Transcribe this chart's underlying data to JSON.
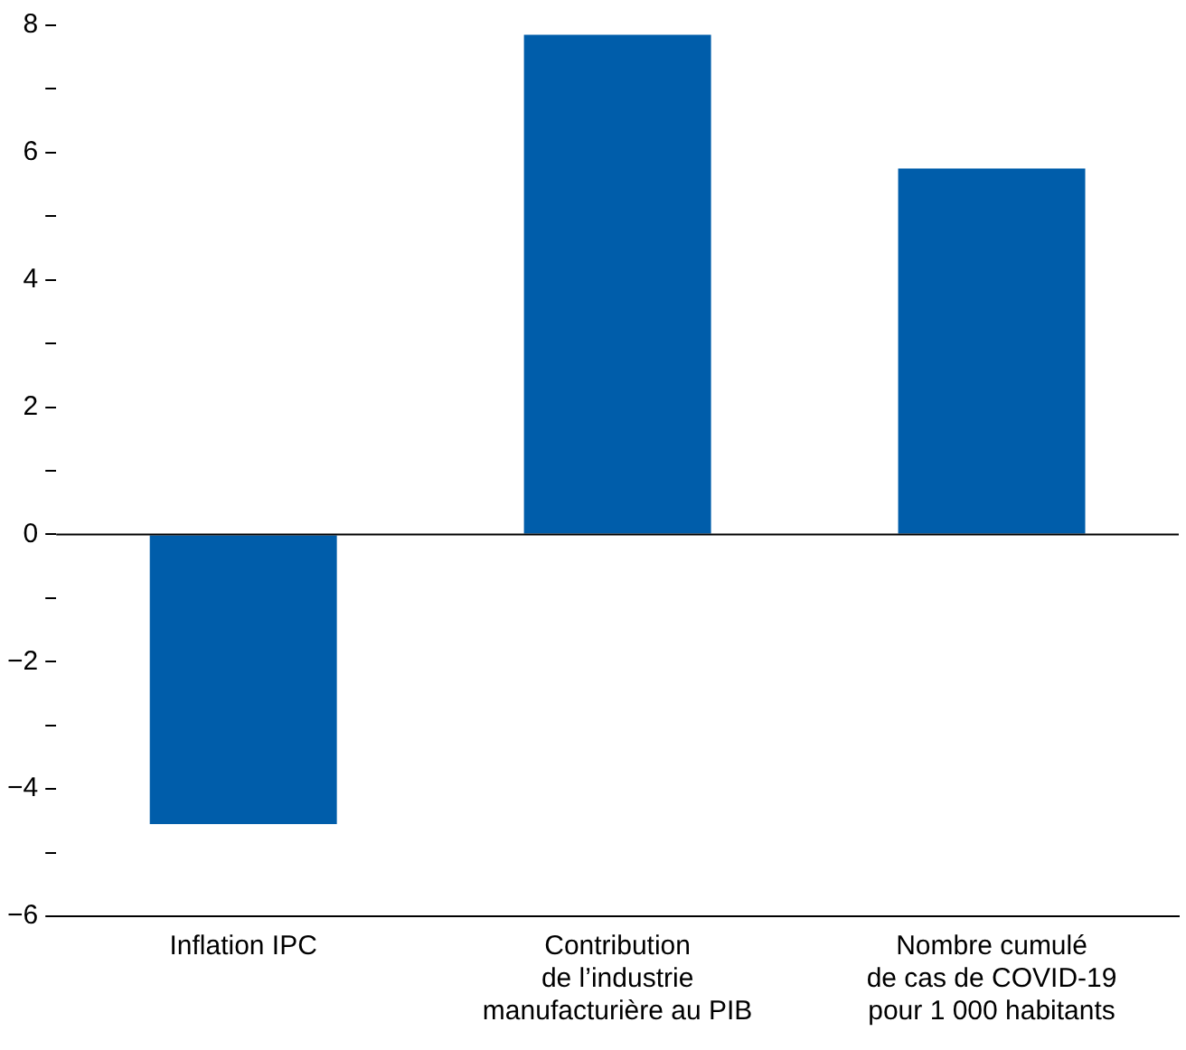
{
  "chart_data": {
    "type": "bar",
    "categories": [
      "Inflation IPC",
      "Contribution\nde l’industrie\nmanufacturière au PIB",
      "Nombre cumulé\nde cas de COVID-19\npour 1 000 habitants"
    ],
    "values": [
      -4.55,
      7.85,
      5.75
    ],
    "color": "#005daa",
    "ylim": [
      -6,
      8
    ],
    "ref_lines": [
      {
        "axis": "y",
        "value": 0,
        "color": "#000000"
      }
    ],
    "yticks": [
      -6,
      {
        "value": -5,
        "label": null
      },
      -4,
      {
        "value": -3,
        "label": null
      },
      -2,
      {
        "value": -1,
        "label": null
      },
      0,
      {
        "value": 1,
        "label": null
      },
      2,
      {
        "value": 3,
        "label": null
      },
      4,
      {
        "value": 5,
        "label": null
      },
      6,
      {
        "value": 7,
        "label": null
      },
      8
    ],
    "grid": false,
    "legend": false
  }
}
